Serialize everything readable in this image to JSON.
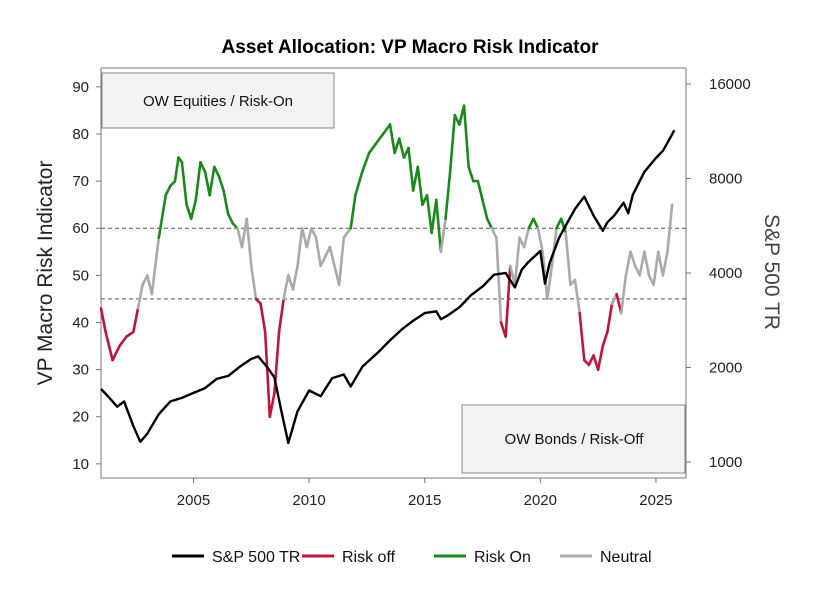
{
  "chart_data": {
    "type": "line",
    "title": "Asset Allocation: VP Macro Risk Indicator",
    "ylabel": "VP Macro Risk Indicator",
    "y2label": "S&P 500 TR",
    "xlim": [
      2001.0,
      2026.3
    ],
    "ylim": [
      7,
      94
    ],
    "y2lim": [
      1000,
      16000
    ],
    "y2scale": "log",
    "x_ticks": [
      2005,
      2010,
      2015,
      2020,
      2025
    ],
    "y_ticks": [
      10,
      20,
      30,
      40,
      50,
      60,
      70,
      80,
      90
    ],
    "y2_ticks": [
      1000,
      2000,
      4000,
      8000,
      16000
    ],
    "thresholds": [
      60,
      45
    ],
    "legend_position": "bottom",
    "annotations": {
      "top_box": "OW Equities / Risk-On",
      "bottom_box": "OW Bonds / Risk-Off"
    },
    "colors": {
      "sp500": "#000000",
      "risk_off": "#c0143c",
      "risk_on": "#1a8a1a",
      "neutral": "#aaaaaa"
    },
    "series": [
      {
        "name": "S&P 500 TR",
        "axis": "right",
        "x": [
          2001.0,
          2001.3,
          2001.7,
          2002.0,
          2002.4,
          2002.7,
          2003.0,
          2003.5,
          2004.0,
          2004.5,
          2005.0,
          2005.5,
          2006.0,
          2006.5,
          2007.0,
          2007.5,
          2007.8,
          2008.2,
          2008.5,
          2008.8,
          2009.1,
          2009.5,
          2010.0,
          2010.5,
          2011.0,
          2011.5,
          2011.8,
          2012.3,
          2013.0,
          2013.5,
          2014.0,
          2014.5,
          2015.0,
          2015.5,
          2015.7,
          2016.0,
          2016.5,
          2017.0,
          2017.5,
          2018.0,
          2018.5,
          2018.9,
          2019.2,
          2019.5,
          2020.0,
          2020.2,
          2020.4,
          2020.8,
          2021.0,
          2021.5,
          2021.9,
          2022.3,
          2022.7,
          2022.9,
          2023.2,
          2023.6,
          2023.8,
          2024.0,
          2024.5,
          2025.0,
          2025.3,
          2025.5,
          2025.8
        ],
        "values": [
          1710,
          1620,
          1500,
          1560,
          1300,
          1160,
          1230,
          1420,
          1560,
          1600,
          1660,
          1720,
          1840,
          1880,
          2010,
          2130,
          2170,
          2000,
          1860,
          1450,
          1150,
          1450,
          1690,
          1620,
          1850,
          1900,
          1740,
          2010,
          2240,
          2440,
          2640,
          2820,
          2980,
          3020,
          2850,
          2930,
          3110,
          3400,
          3620,
          3950,
          4000,
          3600,
          4100,
          4350,
          4700,
          3700,
          4300,
          5150,
          5500,
          6400,
          7000,
          6100,
          5450,
          5800,
          6100,
          6700,
          6200,
          7100,
          8400,
          9300,
          9800,
          10400,
          11400
        ]
      },
      {
        "name": "VP Macro Risk Indicator",
        "axis": "left",
        "x": [
          2001.0,
          2001.2,
          2001.5,
          2001.8,
          2002.1,
          2002.4,
          2002.6,
          2002.8,
          2003.0,
          2003.2,
          2003.5,
          2003.8,
          2004.0,
          2004.2,
          2004.35,
          2004.5,
          2004.7,
          2004.9,
          2005.1,
          2005.3,
          2005.5,
          2005.7,
          2005.9,
          2006.1,
          2006.3,
          2006.5,
          2006.7,
          2006.9,
          2007.1,
          2007.3,
          2007.5,
          2007.7,
          2007.9,
          2008.1,
          2008.3,
          2008.5,
          2008.7,
          2008.9,
          2009.1,
          2009.3,
          2009.5,
          2009.7,
          2009.9,
          2010.1,
          2010.3,
          2010.5,
          2010.7,
          2010.9,
          2011.1,
          2011.3,
          2011.5,
          2011.8,
          2012.0,
          2012.3,
          2012.6,
          2012.9,
          2013.2,
          2013.5,
          2013.7,
          2013.9,
          2014.1,
          2014.3,
          2014.5,
          2014.7,
          2014.9,
          2015.1,
          2015.3,
          2015.5,
          2015.7,
          2015.9,
          2016.1,
          2016.3,
          2016.5,
          2016.7,
          2016.9,
          2017.1,
          2017.3,
          2017.5,
          2017.7,
          2017.9,
          2018.1,
          2018.3,
          2018.5,
          2018.7,
          2018.9,
          2019.1,
          2019.3,
          2019.5,
          2019.7,
          2019.9,
          2020.1,
          2020.3,
          2020.5,
          2020.7,
          2020.9,
          2021.1,
          2021.3,
          2021.5,
          2021.7,
          2021.9,
          2022.1,
          2022.3,
          2022.5,
          2022.7,
          2022.9,
          2023.1,
          2023.3,
          2023.5,
          2023.7,
          2023.9,
          2024.1,
          2024.3,
          2024.5,
          2024.7,
          2024.9,
          2025.1,
          2025.3,
          2025.5,
          2025.7
        ],
        "values": [
          43,
          38,
          32,
          35,
          37,
          38,
          43,
          48,
          50,
          46,
          58,
          67,
          69,
          70,
          75,
          74,
          65,
          62,
          66,
          74,
          72,
          67,
          73,
          71,
          68,
          63,
          61,
          60,
          56,
          62,
          52,
          45,
          44,
          38,
          20,
          25,
          38,
          45,
          50,
          47,
          52,
          60,
          56,
          60,
          58,
          52,
          54,
          56,
          52,
          48,
          58,
          60,
          67,
          72,
          76,
          78,
          80,
          82,
          76,
          79,
          75,
          77,
          68,
          73,
          65,
          67,
          59,
          66,
          55,
          62,
          72,
          84,
          82,
          86,
          73,
          70,
          70,
          66,
          62,
          60,
          58,
          40,
          37,
          52,
          48,
          58,
          56,
          60,
          62,
          60,
          55,
          45,
          52,
          60,
          62,
          59,
          48,
          49,
          42,
          32,
          31,
          33,
          30,
          35,
          38,
          44,
          46,
          42,
          50,
          55,
          52,
          50,
          55,
          50,
          48,
          55,
          50,
          55,
          65
        ]
      }
    ]
  },
  "legend": {
    "items": [
      {
        "label": "S&P 500 TR",
        "color": "#000000"
      },
      {
        "label": "Risk off",
        "color": "#c0143c"
      },
      {
        "label": "Risk On",
        "color": "#1a8a1a"
      },
      {
        "label": "Neutral",
        "color": "#aaaaaa"
      }
    ]
  }
}
